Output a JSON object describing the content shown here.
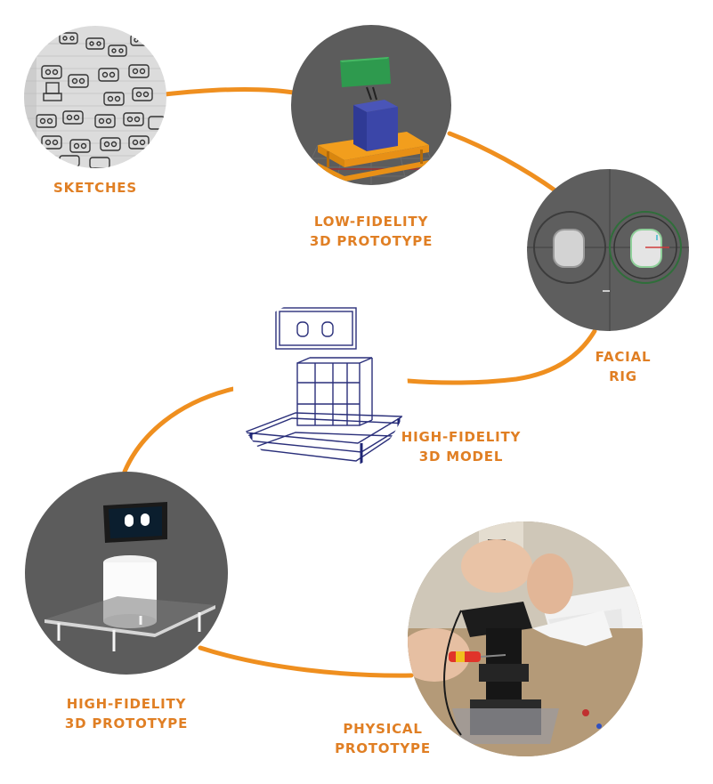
{
  "colors": {
    "accent": "#e07f24",
    "path": "#ef8f1f",
    "viewport_gray": "#5c5c5c"
  },
  "stages": [
    {
      "id": "sketches",
      "label_lines": [
        "SKETCHES"
      ]
    },
    {
      "id": "low-fidelity-3d-prototype",
      "label_lines": [
        "LOW-FIDELITY",
        "3D PROTOTYPE"
      ]
    },
    {
      "id": "facial-rig",
      "label_lines": [
        "FACIAL",
        "RIG"
      ]
    },
    {
      "id": "high-fidelity-3d-model",
      "label_lines": [
        "HIGH-FIDELITY",
        "3D MODEL"
      ]
    },
    {
      "id": "high-fidelity-3d-prototype",
      "label_lines": [
        "HIGH-FIDELITY",
        "3D PROTOTYPE"
      ]
    },
    {
      "id": "physical-prototype",
      "label_lines": [
        "PHYSICAL",
        "PROTOTYPE"
      ]
    }
  ]
}
